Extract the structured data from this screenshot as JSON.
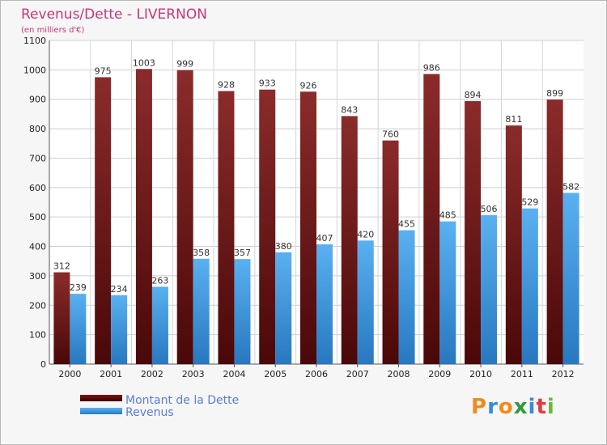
{
  "chart_data": {
    "type": "bar",
    "title": "Revenus/Dette - LIVERNON",
    "subtitle": "(en milliers d'€)",
    "categories": [
      "2000",
      "2001",
      "2002",
      "2003",
      "2004",
      "2005",
      "2006",
      "2007",
      "2008",
      "2009",
      "2010",
      "2011",
      "2012"
    ],
    "series": [
      {
        "name": "Montant de la Dette",
        "color": "#7b1c1c",
        "values": [
          312,
          975,
          1003,
          999,
          928,
          933,
          926,
          843,
          760,
          986,
          894,
          811,
          899
        ]
      },
      {
        "name": "Revenus",
        "color": "#3d9ae3",
        "values": [
          239,
          234,
          263,
          358,
          357,
          380,
          407,
          420,
          455,
          485,
          506,
          529,
          582
        ]
      }
    ],
    "ylim": [
      0,
      1100
    ],
    "yticks": [
      0,
      100,
      200,
      300,
      400,
      500,
      600,
      700,
      800,
      900,
      1000,
      1100
    ],
    "grid": true,
    "legend_position": "bottom-left"
  },
  "brand": {
    "text": "Proxiti",
    "letters": [
      "P",
      "r",
      "o",
      "x",
      "i",
      "t",
      "i"
    ],
    "colors": [
      "#f08a1c",
      "#3a8ad8",
      "#f08a1c",
      "#2f9a3a",
      "#3a8ad8",
      "#e23a3a",
      "#6ab83a"
    ]
  }
}
